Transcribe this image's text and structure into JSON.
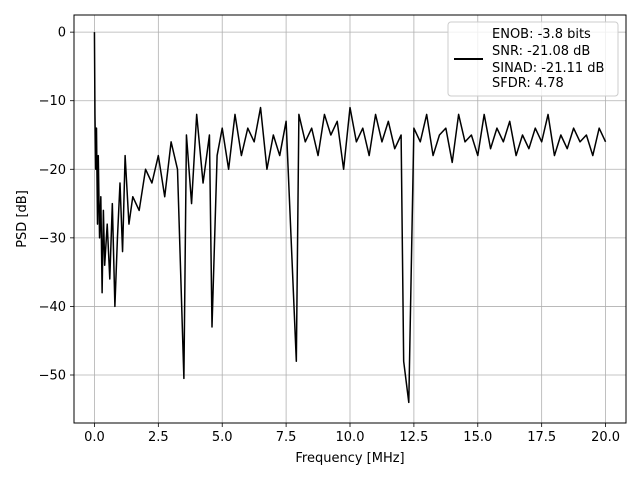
{
  "chart_data": {
    "type": "line",
    "title": "",
    "xlabel": "Frequency [MHz]",
    "ylabel": "PSD [dB]",
    "xlim": [
      -0.8,
      20.8
    ],
    "ylim": [
      -57,
      2.5
    ],
    "xticks": [
      0.0,
      2.5,
      5.0,
      7.5,
      10.0,
      12.5,
      15.0,
      17.5,
      20.0
    ],
    "xtick_labels": [
      "0.0",
      "2.5",
      "5.0",
      "7.5",
      "10.0",
      "12.5",
      "15.0",
      "17.5",
      "20.0"
    ],
    "yticks": [
      0,
      -10,
      -20,
      -30,
      -40,
      -50
    ],
    "ytick_labels": [
      "0",
      "−10",
      "−20",
      "−30",
      "−40",
      "−50"
    ],
    "grid": true,
    "legend_position": "top-right",
    "series": [
      {
        "color": "#000000",
        "x": [
          0.0,
          0.02,
          0.05,
          0.08,
          0.12,
          0.15,
          0.2,
          0.25,
          0.3,
          0.35,
          0.4,
          0.5,
          0.6,
          0.7,
          0.8,
          0.9,
          1.0,
          1.1,
          1.2,
          1.35,
          1.5,
          1.75,
          2.0,
          2.25,
          2.5,
          2.75,
          3.0,
          3.25,
          3.5,
          3.6,
          3.8,
          4.0,
          4.25,
          4.5,
          4.6,
          4.8,
          5.0,
          5.25,
          5.5,
          5.75,
          6.0,
          6.25,
          6.5,
          6.75,
          7.0,
          7.25,
          7.5,
          7.9,
          8.0,
          8.25,
          8.5,
          8.75,
          9.0,
          9.25,
          9.5,
          9.75,
          10.0,
          10.25,
          10.5,
          10.75,
          11.0,
          11.25,
          11.5,
          11.75,
          12.0,
          12.1,
          12.3,
          12.5,
          12.75,
          13.0,
          13.25,
          13.5,
          13.75,
          14.0,
          14.25,
          14.5,
          14.75,
          15.0,
          15.25,
          15.5,
          15.75,
          16.0,
          16.25,
          16.5,
          16.75,
          17.0,
          17.25,
          17.5,
          17.75,
          18.0,
          18.25,
          18.5,
          18.75,
          19.0,
          19.25,
          19.5,
          19.75,
          20.0
        ],
        "y": [
          0.0,
          -12.0,
          -20.0,
          -14.0,
          -28.0,
          -18.0,
          -30.0,
          -24.0,
          -38.0,
          -26.0,
          -34.0,
          -28.0,
          -36.0,
          -25.0,
          -40.0,
          -30.0,
          -22.0,
          -32.0,
          -18.0,
          -28.0,
          -24.0,
          -26.0,
          -20.0,
          -22.0,
          -18.0,
          -24.0,
          -16.0,
          -20.0,
          -50.5,
          -15.0,
          -25.0,
          -12.0,
          -22.0,
          -15.0,
          -43.0,
          -18.0,
          -14.0,
          -20.0,
          -12.0,
          -18.0,
          -14.0,
          -16.0,
          -11.0,
          -20.0,
          -15.0,
          -18.0,
          -13.0,
          -48.0,
          -12.0,
          -16.0,
          -14.0,
          -18.0,
          -12.0,
          -15.0,
          -13.0,
          -20.0,
          -11.0,
          -16.0,
          -14.0,
          -18.0,
          -12.0,
          -16.0,
          -13.0,
          -17.0,
          -15.0,
          -48.0,
          -54.0,
          -14.0,
          -16.0,
          -12.0,
          -18.0,
          -15.0,
          -14.0,
          -19.0,
          -12.0,
          -16.0,
          -15.0,
          -18.0,
          -12.0,
          -17.0,
          -14.0,
          -16.0,
          -13.0,
          -18.0,
          -15.0,
          -17.0,
          -14.0,
          -16.0,
          -12.0,
          -18.0,
          -15.0,
          -17.0,
          -14.0,
          -16.0,
          -15.0,
          -18.0,
          -14.0,
          -16.0
        ]
      }
    ],
    "legend": {
      "entries": [
        "ENOB: -3.8 bits",
        "SNR: -21.08 dB",
        "SINAD: -21.11 dB",
        "SFDR: 4.78"
      ]
    }
  }
}
